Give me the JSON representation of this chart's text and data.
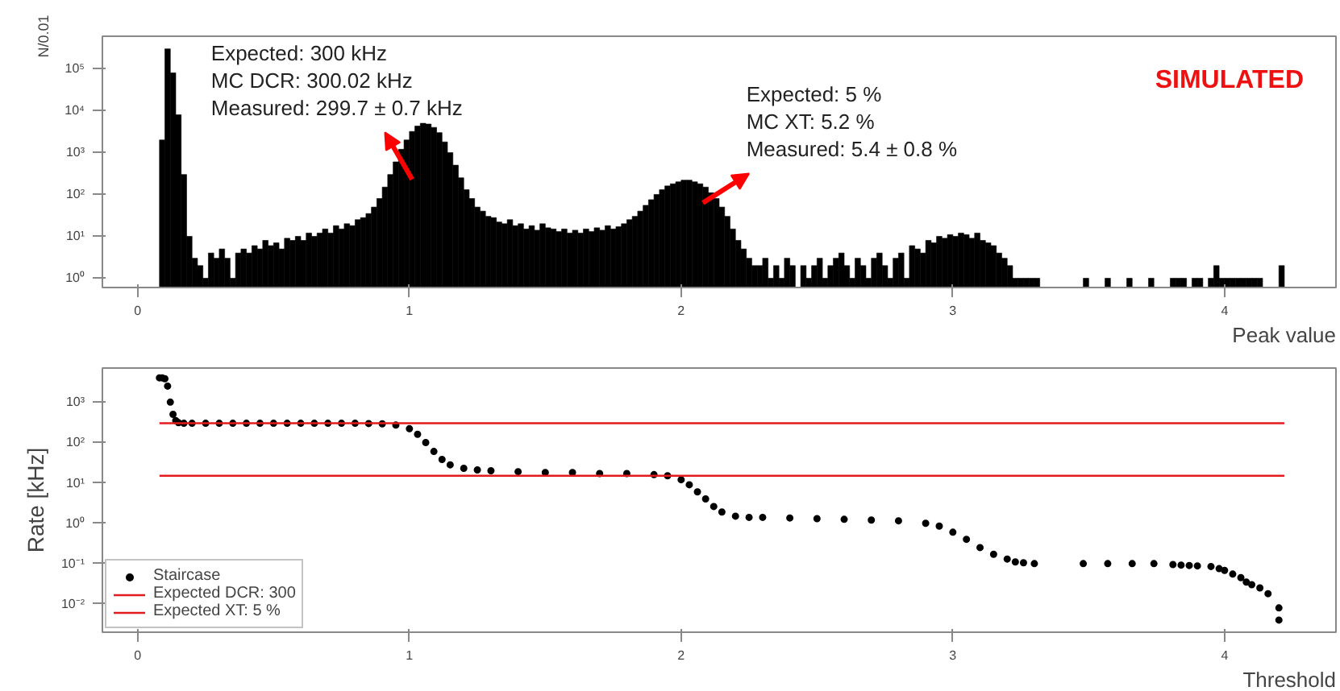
{
  "chart_data": [
    {
      "type": "histogram",
      "xlabel": "Peak value",
      "ylabel": "N/0.01",
      "log": true,
      "color": "#000000",
      "xlim": [
        -0.13,
        4.41
      ],
      "xticks": [
        0,
        1,
        2,
        3,
        4
      ],
      "ylim": [
        0.6,
        600000
      ],
      "yticks": [
        {
          "value": 1,
          "label": "10⁰"
        },
        {
          "value": 10,
          "label": "10¹"
        },
        {
          "value": 100,
          "label": "10²"
        },
        {
          "value": 1000,
          "label": "10³"
        },
        {
          "value": 10000,
          "label": "10⁴"
        },
        {
          "value": 100000,
          "label": "10⁵"
        }
      ],
      "bins": [
        0.08,
        0.1,
        0.12,
        0.14,
        0.16,
        0.18,
        0.2,
        0.22,
        0.24,
        0.26,
        0.28,
        0.3,
        0.32,
        0.34,
        0.36,
        0.38,
        0.4,
        0.42,
        0.44,
        0.46,
        0.48,
        0.5,
        0.52,
        0.54,
        0.56,
        0.58,
        0.6,
        0.62,
        0.64,
        0.66,
        0.68,
        0.7,
        0.72,
        0.74,
        0.76,
        0.78,
        0.8,
        0.82,
        0.84,
        0.86,
        0.88,
        0.9,
        0.92,
        0.94,
        0.96,
        0.98,
        1.0,
        1.02,
        1.04,
        1.06,
        1.08,
        1.1,
        1.12,
        1.14,
        1.16,
        1.18,
        1.2,
        1.22,
        1.24,
        1.26,
        1.28,
        1.3,
        1.32,
        1.34,
        1.36,
        1.38,
        1.4,
        1.42,
        1.44,
        1.46,
        1.48,
        1.5,
        1.52,
        1.54,
        1.56,
        1.58,
        1.6,
        1.62,
        1.64,
        1.66,
        1.68,
        1.7,
        1.72,
        1.74,
        1.76,
        1.78,
        1.8,
        1.82,
        1.84,
        1.86,
        1.88,
        1.9,
        1.92,
        1.94,
        1.96,
        1.98,
        2.0,
        2.02,
        2.04,
        2.06,
        2.08,
        2.1,
        2.12,
        2.14,
        2.16,
        2.18,
        2.2,
        2.22,
        2.24,
        2.26,
        2.28,
        2.3,
        2.32,
        2.34,
        2.36,
        2.38,
        2.4,
        2.42,
        2.44,
        2.46,
        2.48,
        2.5,
        2.52,
        2.54,
        2.56,
        2.58,
        2.6,
        2.62,
        2.64,
        2.66,
        2.68,
        2.7,
        2.72,
        2.74,
        2.76,
        2.78,
        2.8,
        2.82,
        2.84,
        2.86,
        2.88,
        2.9,
        2.92,
        2.94,
        2.96,
        2.98,
        3.0,
        3.02,
        3.04,
        3.06,
        3.08,
        3.1,
        3.12,
        3.14,
        3.16,
        3.18,
        3.2,
        3.22,
        3.24,
        3.26,
        3.28,
        3.3,
        3.32,
        3.34,
        3.36,
        3.38,
        3.4,
        3.42,
        3.44,
        3.46,
        3.48,
        3.5,
        3.52,
        3.54,
        3.56,
        3.58,
        3.6,
        3.62,
        3.64,
        3.66,
        3.68,
        3.7,
        3.72,
        3.74,
        3.76,
        3.78,
        3.8,
        3.82,
        3.84,
        3.86,
        3.88,
        3.9,
        3.92,
        3.94,
        3.96,
        3.98,
        4.0,
        4.02,
        4.04,
        4.06,
        4.08,
        4.1,
        4.12,
        4.14,
        4.16,
        4.18,
        4.2,
        4.22
      ],
      "values": [
        2000,
        300000,
        80000,
        8000,
        300,
        10,
        3,
        2,
        1,
        4,
        3,
        5,
        3,
        1,
        4,
        5,
        4,
        6,
        5,
        8,
        6,
        7,
        5,
        9,
        8,
        10,
        8,
        12,
        10,
        12,
        15,
        12,
        18,
        15,
        20,
        18,
        25,
        28,
        35,
        50,
        80,
        150,
        300,
        600,
        1200,
        2000,
        3200,
        4300,
        5000,
        4800,
        4000,
        3000,
        1800,
        1000,
        500,
        250,
        130,
        80,
        50,
        40,
        30,
        28,
        22,
        20,
        25,
        18,
        20,
        15,
        18,
        14,
        20,
        16,
        15,
        13,
        15,
        12,
        14,
        12,
        15,
        13,
        16,
        14,
        18,
        15,
        17,
        20,
        25,
        30,
        40,
        55,
        75,
        100,
        130,
        160,
        180,
        200,
        220,
        220,
        200,
        180,
        150,
        110,
        80,
        50,
        30,
        15,
        8,
        5,
        3,
        2,
        2,
        3,
        1,
        2,
        1,
        3,
        2,
        null,
        2,
        1,
        2,
        3,
        1,
        2,
        3,
        4,
        2,
        1,
        3,
        2,
        1,
        3,
        4,
        2,
        1,
        3,
        4,
        1,
        6,
        5,
        4,
        8,
        7,
        10,
        9,
        11,
        10,
        12,
        11,
        9,
        12,
        8,
        7,
        6,
        4,
        3,
        2,
        1,
        1,
        1,
        1,
        1,
        null,
        null,
        null,
        null,
        null,
        null,
        null,
        null,
        1,
        null,
        null,
        null,
        1,
        null,
        null,
        null,
        1,
        null,
        null,
        null,
        1,
        null,
        null,
        null,
        1,
        1,
        1,
        null,
        1,
        1,
        null,
        1,
        2,
        1,
        1,
        1,
        1,
        1,
        1,
        1,
        1,
        null,
        null,
        null,
        2
      ],
      "annotations": [
        {
          "text": "Expected: 300 kHz\nMC DCR: 300.02 kHz\nMeasured: 299.7  ± 0.7 kHz",
          "x": 1.01,
          "y": 230
        },
        {
          "text": "Expected: 5 %\nMC XT: 5.2 %\nMeasured: 5.4  ± 0.8 %",
          "x": 2.08,
          "y": 63
        },
        "SIMULATED"
      ]
    },
    {
      "type": "scatter",
      "xlabel": "Threshold",
      "ylabel": "Rate [kHz]",
      "log": true,
      "legend": "bottom left",
      "xlim": [
        -0.13,
        4.41
      ],
      "xticks": [
        0,
        1,
        2,
        3,
        4
      ],
      "ylim": [
        0.002,
        7000
      ],
      "yticks": [
        {
          "value": 0.01,
          "label": "10⁻²"
        },
        {
          "value": 0.1,
          "label": "10⁻¹"
        },
        {
          "value": 1,
          "label": "10⁰"
        },
        {
          "value": 10,
          "label": "10¹"
        },
        {
          "value": 100,
          "label": "10²"
        },
        {
          "value": 1000,
          "label": "10³"
        }
      ],
      "series": [
        {
          "name": "Staircase",
          "type": "scatter",
          "marker": "circle",
          "color": "#000000",
          "x": [
            0.08,
            0.09,
            0.1,
            0.11,
            0.12,
            0.13,
            0.14,
            0.15,
            0.17,
            0.2,
            0.25,
            0.3,
            0.35,
            0.4,
            0.45,
            0.5,
            0.55,
            0.6,
            0.65,
            0.7,
            0.75,
            0.8,
            0.85,
            0.9,
            0.95,
            1.0,
            1.03,
            1.06,
            1.09,
            1.12,
            1.15,
            1.2,
            1.25,
            1.3,
            1.4,
            1.5,
            1.6,
            1.7,
            1.8,
            1.9,
            1.95,
            2.0,
            2.03,
            2.06,
            2.09,
            2.12,
            2.15,
            2.2,
            2.25,
            2.3,
            2.4,
            2.5,
            2.6,
            2.7,
            2.8,
            2.9,
            2.95,
            3.0,
            3.05,
            3.1,
            3.15,
            3.2,
            3.23,
            3.26,
            3.3,
            3.48,
            3.57,
            3.66,
            3.74,
            3.81,
            3.84,
            3.87,
            3.9,
            3.95,
            3.98,
            4.0,
            4.03,
            4.06,
            4.08,
            4.1,
            4.13,
            4.16,
            4.2,
            4.2
          ],
          "values": [
            4000,
            4000,
            3800,
            2500,
            1000,
            500,
            350,
            310,
            300,
            300,
            300,
            300,
            300,
            300,
            300,
            300,
            300,
            300,
            300,
            300,
            300,
            300,
            295,
            290,
            270,
            220,
            160,
            100,
            60,
            38,
            28,
            23,
            21,
            20,
            19,
            18,
            18,
            17,
            17,
            16,
            15,
            12,
            9,
            6,
            4,
            2.6,
            1.9,
            1.5,
            1.4,
            1.4,
            1.35,
            1.3,
            1.25,
            1.2,
            1.15,
            1.0,
            0.85,
            0.6,
            0.4,
            0.25,
            0.17,
            0.13,
            0.11,
            0.105,
            0.1,
            0.1,
            0.1,
            0.1,
            0.1,
            0.095,
            0.092,
            0.09,
            0.088,
            0.085,
            0.075,
            0.068,
            0.055,
            0.045,
            0.035,
            0.03,
            0.025,
            0.018,
            0.008,
            0.004
          ]
        },
        {
          "name": "Expected DCR: 300",
          "type": "line",
          "color": "#e41a1c",
          "x": [
            0.08,
            4.22
          ],
          "values": [
            300,
            300
          ]
        },
        {
          "name": "Expected XT: 5 %",
          "type": "line",
          "color": "#e41a1c",
          "x": [
            0.08,
            4.22
          ],
          "values": [
            15,
            15
          ]
        }
      ]
    }
  ]
}
